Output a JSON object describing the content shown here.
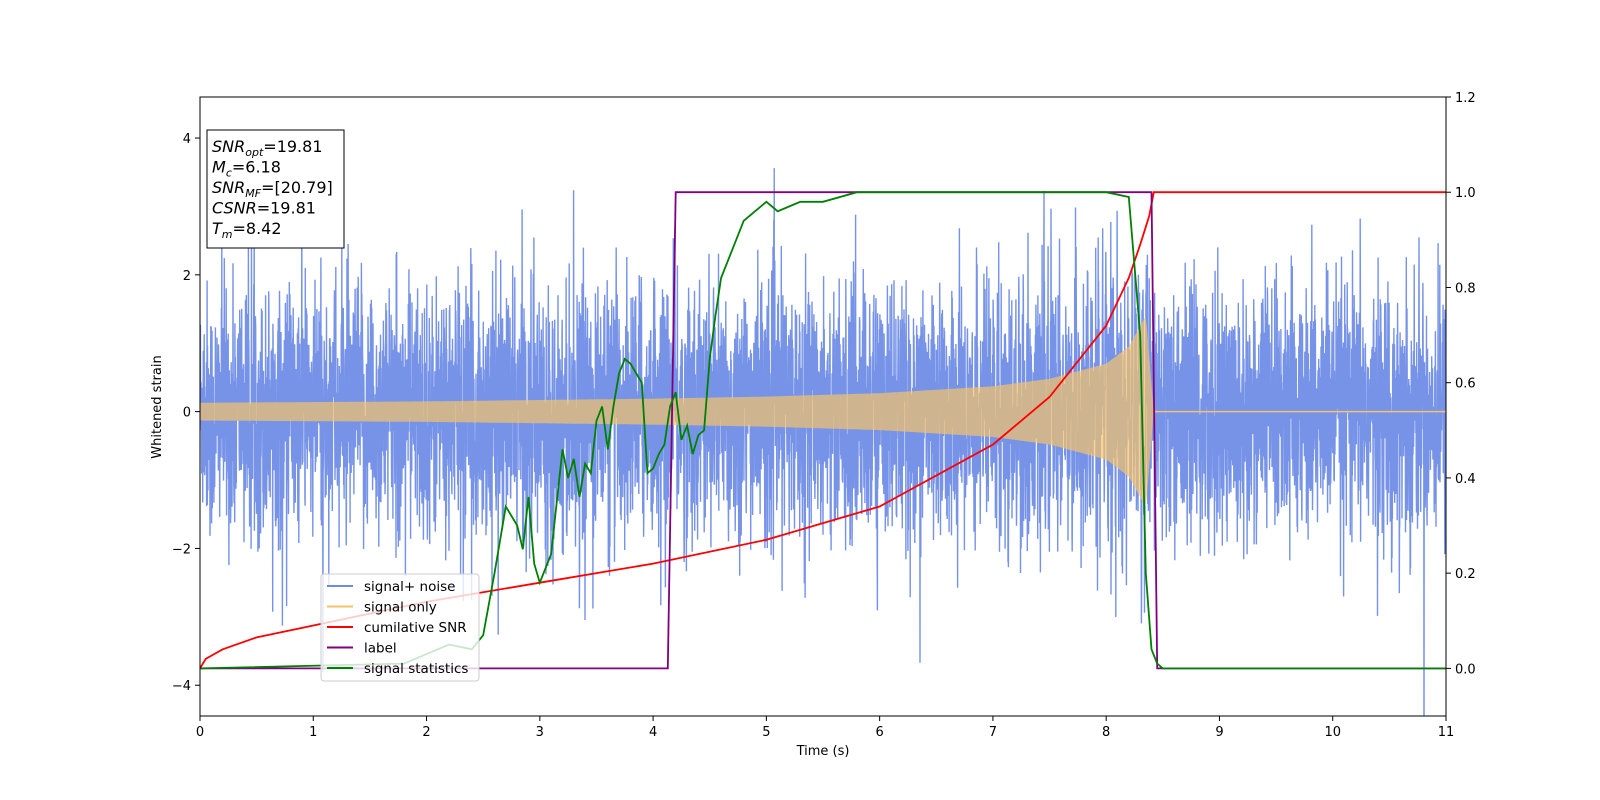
{
  "chart_data": {
    "type": "line",
    "xlabel": "Time (s)",
    "ylabel": "Whitened strain",
    "xlim": [
      0,
      11
    ],
    "ylim": [
      -4.45,
      4.6
    ],
    "y2lim": [
      -0.1,
      1.2
    ],
    "x_ticks": [
      0,
      1,
      2,
      3,
      4,
      5,
      6,
      7,
      8,
      9,
      10,
      11
    ],
    "y_ticks": [
      -4,
      -2,
      0,
      2,
      4
    ],
    "y2_ticks": [
      "0.0",
      "0.2",
      "0.4",
      "0.6",
      "0.8",
      "1.0",
      "1.2"
    ],
    "grid": false,
    "legend_position": "lower-left",
    "annotation": {
      "lines": [
        {
          "base": "SNR",
          "sub": "opt",
          "rest": "=19.81"
        },
        {
          "base": "M",
          "sub": "c",
          "rest": "=6.18"
        },
        {
          "base": "SNR",
          "sub": "MF",
          "rest": "=[20.79]"
        },
        {
          "base": "CSNR",
          "sub": "",
          "rest": "=19.81"
        },
        {
          "base": "T",
          "sub": "m",
          "rest": "=8.42"
        }
      ]
    },
    "series": [
      {
        "name": "signal+ noise",
        "color": "#6a8ae6",
        "axis": "left",
        "noise_std": 0.9,
        "x_range": [
          0,
          11
        ]
      },
      {
        "name": "signal only",
        "color": "#f5c26b",
        "axis": "left",
        "envelope": {
          "x": [
            0,
            1,
            2,
            3,
            4,
            5,
            6,
            7,
            7.5,
            8,
            8.2,
            8.35,
            8.42,
            11
          ],
          "amp": [
            0.13,
            0.14,
            0.15,
            0.17,
            0.19,
            0.22,
            0.27,
            0.37,
            0.48,
            0.7,
            0.95,
            1.4,
            0.0,
            0.0
          ]
        }
      },
      {
        "name": "cumilative SNR",
        "color": "#ff0000",
        "axis": "right",
        "x": [
          0,
          0.05,
          0.2,
          0.5,
          1,
          2,
          3,
          4,
          5,
          6,
          7,
          7.5,
          8,
          8.2,
          8.3,
          8.38,
          8.42,
          8.45,
          11
        ],
        "y": [
          0.0,
          0.02,
          0.04,
          0.065,
          0.09,
          0.14,
          0.18,
          0.22,
          0.27,
          0.34,
          0.47,
          0.57,
          0.72,
          0.82,
          0.89,
          0.95,
          1.0,
          1.0,
          1.0
        ]
      },
      {
        "name": "label",
        "color": "#800080",
        "axis": "right",
        "x": [
          0,
          4.13,
          4.2,
          8.4,
          8.45,
          11
        ],
        "y": [
          0.0,
          0.0,
          1.0,
          1.0,
          0.0,
          0.0
        ]
      },
      {
        "name": "signal statistics",
        "color": "#008000",
        "axis": "right",
        "x": [
          0,
          1.8,
          2.0,
          2.2,
          2.4,
          2.5,
          2.6,
          2.7,
          2.8,
          2.85,
          2.9,
          2.95,
          3.0,
          3.1,
          3.2,
          3.25,
          3.3,
          3.35,
          3.4,
          3.45,
          3.5,
          3.55,
          3.6,
          3.65,
          3.7,
          3.75,
          3.8,
          3.85,
          3.9,
          3.95,
          4.0,
          4.05,
          4.1,
          4.15,
          4.2,
          4.25,
          4.3,
          4.35,
          4.4,
          4.45,
          4.5,
          4.55,
          4.6,
          4.7,
          4.8,
          4.9,
          5.0,
          5.1,
          5.2,
          5.3,
          5.5,
          5.8,
          6.0,
          6.5,
          7.0,
          7.5,
          8.0,
          8.2,
          8.3,
          8.35,
          8.4,
          8.45,
          8.5,
          8.6,
          11
        ],
        "y": [
          0.0,
          0.01,
          0.03,
          0.05,
          0.04,
          0.07,
          0.2,
          0.34,
          0.3,
          0.25,
          0.36,
          0.22,
          0.18,
          0.24,
          0.46,
          0.4,
          0.44,
          0.36,
          0.43,
          0.41,
          0.52,
          0.55,
          0.46,
          0.55,
          0.62,
          0.65,
          0.64,
          0.62,
          0.6,
          0.41,
          0.42,
          0.45,
          0.47,
          0.55,
          0.58,
          0.48,
          0.51,
          0.45,
          0.49,
          0.5,
          0.65,
          0.74,
          0.82,
          0.88,
          0.94,
          0.96,
          0.98,
          0.96,
          0.97,
          0.98,
          0.98,
          1.0,
          1.0,
          1.0,
          1.0,
          1.0,
          1.0,
          0.99,
          0.7,
          0.2,
          0.04,
          0.01,
          0.0,
          0.0,
          0.0
        ]
      }
    ]
  }
}
